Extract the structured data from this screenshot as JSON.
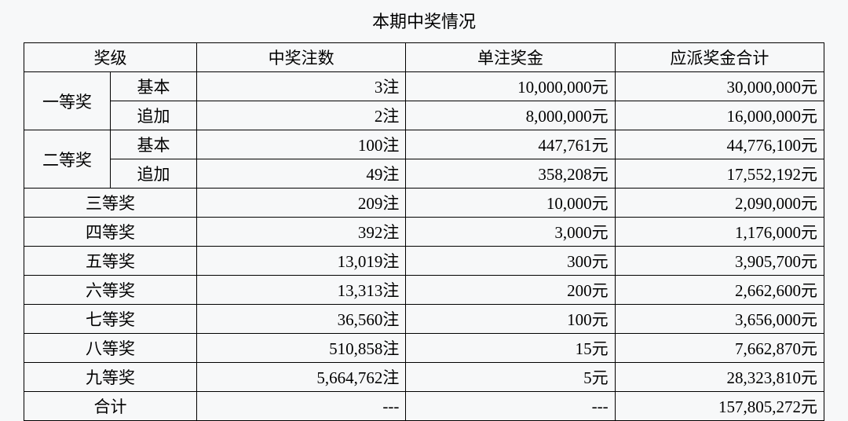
{
  "title": "本期中奖情况",
  "headers": {
    "level": "奖级",
    "count": "中奖注数",
    "unit": "单注奖金",
    "total": "应派奖金合计"
  },
  "count_suffix": "注",
  "money_suffix": "元",
  "null_value": "---",
  "groups": [
    {
      "label": "一等奖",
      "subrows": [
        {
          "sublabel": "基本",
          "count": "3",
          "unit": "10,000,000",
          "total": "30,000,000"
        },
        {
          "sublabel": "追加",
          "count": "2",
          "unit": "8,000,000",
          "total": "16,000,000"
        }
      ]
    },
    {
      "label": "二等奖",
      "subrows": [
        {
          "sublabel": "基本",
          "count": "100",
          "unit": "447,761",
          "total": "44,776,100"
        },
        {
          "sublabel": "追加",
          "count": "49",
          "unit": "358,208",
          "total": "17,552,192"
        }
      ]
    }
  ],
  "rows": [
    {
      "label": "三等奖",
      "count": "209",
      "unit": "10,000",
      "total": "2,090,000"
    },
    {
      "label": "四等奖",
      "count": "392",
      "unit": "3,000",
      "total": "1,176,000"
    },
    {
      "label": "五等奖",
      "count": "13,019",
      "unit": "300",
      "total": "3,905,700"
    },
    {
      "label": "六等奖",
      "count": "13,313",
      "unit": "200",
      "total": "2,662,600"
    },
    {
      "label": "七等奖",
      "count": "36,560",
      "unit": "100",
      "total": "3,656,000"
    },
    {
      "label": "八等奖",
      "count": "510,858",
      "unit": "15",
      "total": "7,662,870"
    },
    {
      "label": "九等奖",
      "count": "5,664,762",
      "unit": "5",
      "total": "28,323,810"
    }
  ],
  "footer": {
    "label": "合计",
    "total": "157,805,272"
  }
}
